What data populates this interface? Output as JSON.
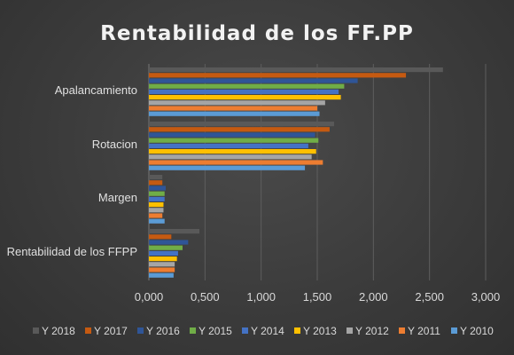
{
  "chart_data": {
    "type": "bar",
    "orientation": "horizontal",
    "title": "Rentabilidad de los FF.PP",
    "categories": [
      "Apalancamiento",
      "Rotacion",
      "Margen",
      "Rentabilidad de los FFPP"
    ],
    "xlim": [
      0,
      3
    ],
    "xticks": [
      0,
      0.5,
      1,
      1.5,
      2,
      2.5,
      3
    ],
    "xtick_labels": [
      "0,000",
      "0,500",
      "1,000",
      "1,500",
      "2,000",
      "2,500",
      "3,000"
    ],
    "grid": true,
    "legend_position": "bottom",
    "series": [
      {
        "name": "Y 2018",
        "color": "#595959",
        "values": [
          2.62,
          1.65,
          0.12,
          0.45
        ]
      },
      {
        "name": "Y 2017",
        "color": "#c55a11",
        "values": [
          2.29,
          1.61,
          0.12,
          0.2
        ]
      },
      {
        "name": "Y 2016",
        "color": "#2f5597",
        "values": [
          1.86,
          1.48,
          0.15,
          0.35
        ]
      },
      {
        "name": "Y 2015",
        "color": "#70ad47",
        "values": [
          1.74,
          1.51,
          0.14,
          0.3
        ]
      },
      {
        "name": "Y 2014",
        "color": "#4472c4",
        "values": [
          1.69,
          1.42,
          0.14,
          0.26
        ]
      },
      {
        "name": "Y 2013",
        "color": "#ffc000",
        "values": [
          1.71,
          1.49,
          0.13,
          0.25
        ]
      },
      {
        "name": "Y 2012",
        "color": "#a5a5a5",
        "values": [
          1.57,
          1.45,
          0.13,
          0.23
        ]
      },
      {
        "name": "Y 2011",
        "color": "#ed7d31",
        "values": [
          1.5,
          1.55,
          0.12,
          0.23
        ]
      },
      {
        "name": "Y 2010",
        "color": "#5b9bd5",
        "values": [
          1.52,
          1.39,
          0.14,
          0.22
        ]
      }
    ]
  }
}
